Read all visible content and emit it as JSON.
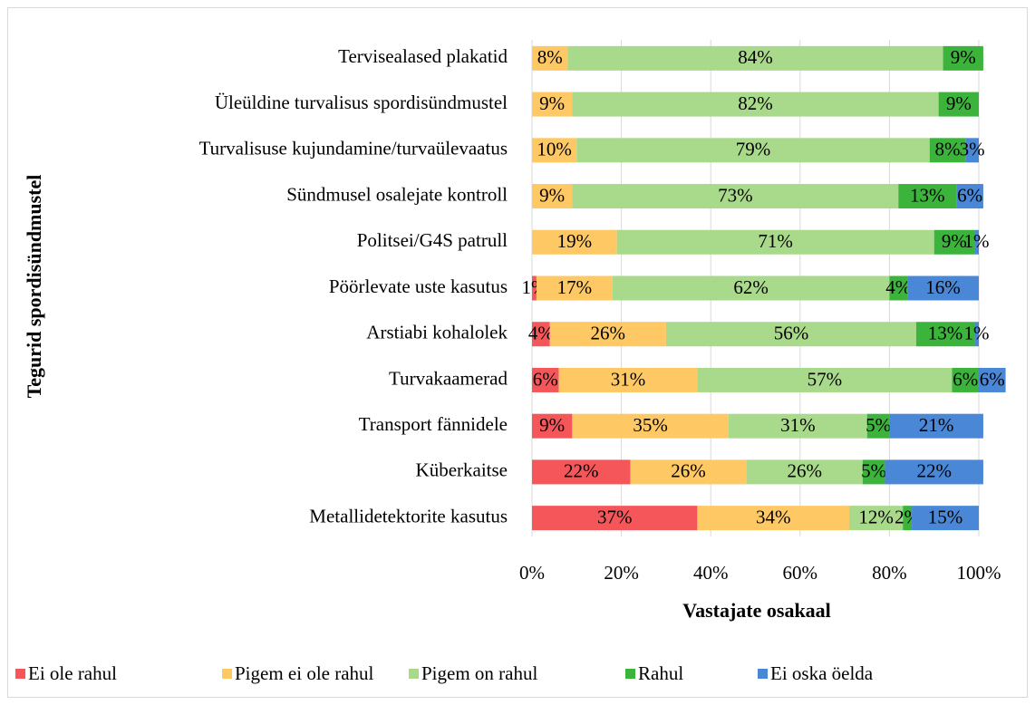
{
  "chart_data": {
    "type": "stacked_barh",
    "xlabel": "Vastajate osakaal",
    "ylabel": "Tegurid spordisündmustel",
    "categories": [
      "Tervisealased plakatid",
      "Üleüldine turvalisus spordisündmustel",
      "Turvalisuse kujundamine/turvaülevaatus",
      "Sündmusel osalejate kontroll",
      "Politsei/G4S patrull",
      "Pöörlevate uste kasutus",
      "Arstiabi kohalolek",
      "Turvakaamerad",
      "Transport fännidele",
      "Küberkaitse",
      "Metallidetektorite kasutus"
    ],
    "series": [
      {
        "name": "Ei ole rahul",
        "color": "#f4565a",
        "values": [
          null,
          null,
          null,
          null,
          null,
          1,
          4,
          6,
          9,
          22,
          37
        ],
        "value_labels": [
          null,
          null,
          null,
          null,
          null,
          "1%",
          "4%",
          "6%",
          "9%",
          "22%",
          "37%"
        ]
      },
      {
        "name": "Pigem ei ole rahul",
        "color": "#fec965",
        "values": [
          8,
          9,
          10,
          9,
          19,
          17,
          26,
          31,
          35,
          26,
          34
        ],
        "value_labels": [
          "8%",
          "9%",
          "10%",
          "9%",
          "19%",
          "17%",
          "26%",
          "31%",
          "35%",
          "26%",
          "34%"
        ]
      },
      {
        "name": "Pigem on rahul",
        "color": "#a9d98b",
        "values": [
          84,
          82,
          79,
          73,
          71,
          62,
          56,
          57,
          31,
          26,
          12
        ],
        "value_labels": [
          "84%",
          "82%",
          "79%",
          "73%",
          "71%",
          "62%",
          "56%",
          "57%",
          "31%",
          "26%",
          "12%"
        ]
      },
      {
        "name": "Rahul",
        "color": "#3cb43c",
        "values": [
          9,
          9,
          8,
          13,
          9,
          4,
          13,
          6,
          5,
          5,
          2
        ],
        "value_labels": [
          "9%",
          "9%",
          "8%",
          "13%",
          "9%",
          "4%",
          "13%",
          "6%",
          "5%",
          "5%",
          "2%"
        ]
      },
      {
        "name": "Ei oska öelda",
        "color": "#4a87d6",
        "values": [
          null,
          null,
          3,
          6,
          1,
          16,
          1,
          6,
          21,
          22,
          15
        ],
        "value_labels": [
          null,
          null,
          "3%",
          "6%",
          "1%",
          "16%",
          "1%",
          "6%",
          "21%",
          "22%",
          "15%"
        ]
      }
    ],
    "xlim": [
      0,
      100
    ],
    "xticks": [
      {
        "value": 0,
        "label": "0%"
      },
      {
        "value": 20,
        "label": "20%"
      },
      {
        "value": 40,
        "label": "40%"
      },
      {
        "value": 60,
        "label": "60%"
      },
      {
        "value": 80,
        "label": "80%"
      },
      {
        "value": 100,
        "label": "100%"
      }
    ],
    "grid": true,
    "legend": "bottom"
  }
}
